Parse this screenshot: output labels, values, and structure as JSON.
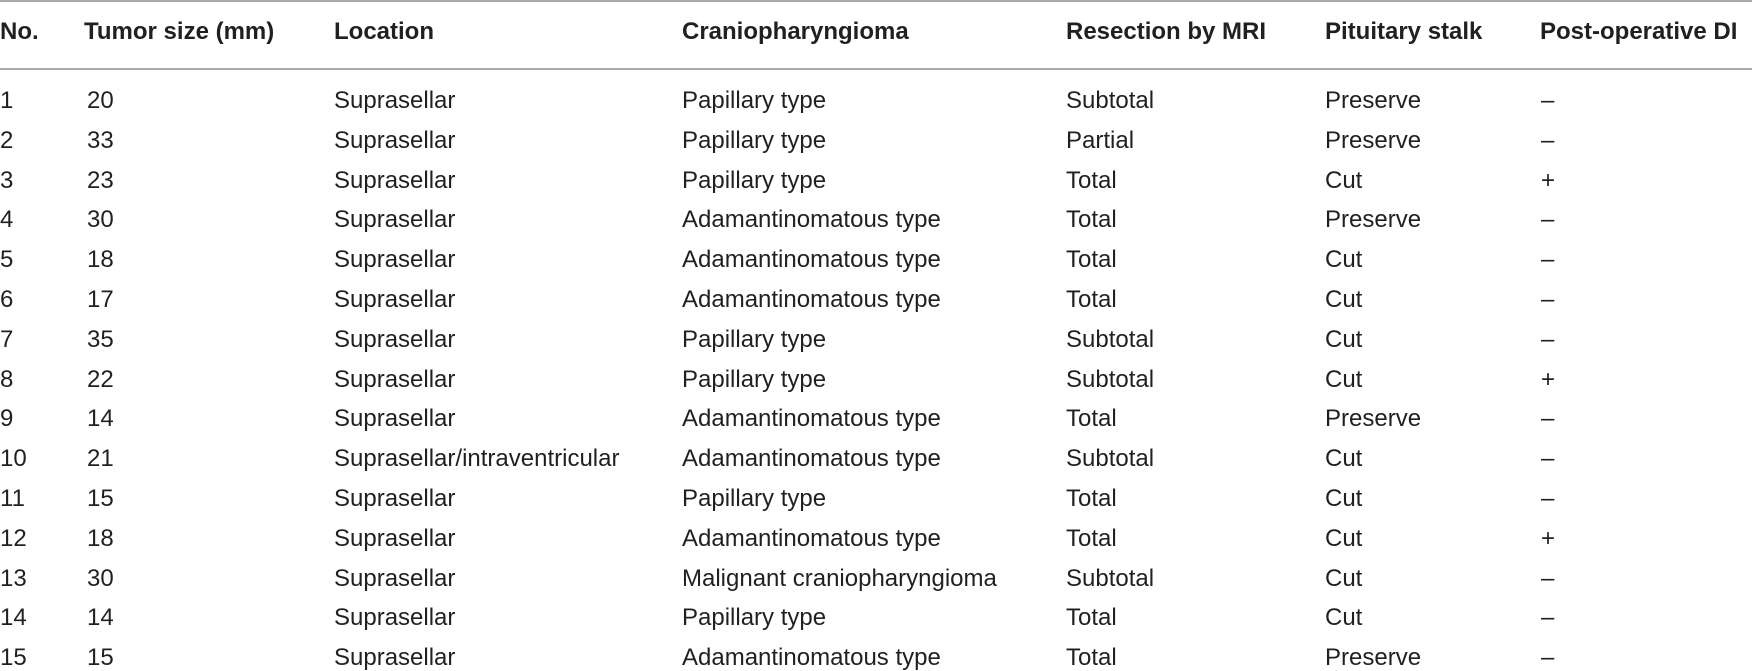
{
  "table": {
    "headers": [
      "No.",
      "Tumor size (mm)",
      "Location",
      "Craniopharyngioma",
      "Resection by MRI",
      "Pituitary stalk",
      "Post-operative DI"
    ],
    "rows": [
      [
        "1",
        "20",
        "Suprasellar",
        "Papillary type",
        "Subtotal",
        "Preserve",
        "–"
      ],
      [
        "2",
        "33",
        "Suprasellar",
        "Papillary type",
        "Partial",
        "Preserve",
        "–"
      ],
      [
        "3",
        "23",
        "Suprasellar",
        "Papillary type",
        "Total",
        "Cut",
        "+"
      ],
      [
        "4",
        "30",
        "Suprasellar",
        "Adamantinomatous type",
        "Total",
        "Preserve",
        "–"
      ],
      [
        "5",
        "18",
        "Suprasellar",
        "Adamantinomatous type",
        "Total",
        "Cut",
        "–"
      ],
      [
        "6",
        "17",
        "Suprasellar",
        "Adamantinomatous type",
        "Total",
        "Cut",
        "–"
      ],
      [
        "7",
        "35",
        "Suprasellar",
        "Papillary type",
        "Subtotal",
        "Cut",
        "–"
      ],
      [
        "8",
        "22",
        "Suprasellar",
        "Papillary type",
        "Subtotal",
        "Cut",
        "+"
      ],
      [
        "9",
        "14",
        "Suprasellar",
        "Adamantinomatous type",
        "Total",
        "Preserve",
        "–"
      ],
      [
        "10",
        "21",
        "Suprasellar/intraventricular",
        "Adamantinomatous type",
        "Subtotal",
        "Cut",
        "–"
      ],
      [
        "11",
        "15",
        "Suprasellar",
        "Papillary type",
        "Total",
        "Cut",
        "–"
      ],
      [
        "12",
        "18",
        "Suprasellar",
        "Adamantinomatous type",
        "Total",
        "Cut",
        "+"
      ],
      [
        "13",
        "30",
        "Suprasellar",
        "Malignant craniopharyngioma",
        "Subtotal",
        "Cut",
        "–"
      ],
      [
        "14",
        "14",
        "Suprasellar",
        "Papillary type",
        "Total",
        "Cut",
        "–"
      ],
      [
        "15",
        "15",
        "Suprasellar",
        "Adamantinomatous type",
        "Total",
        "Preserve",
        "–"
      ]
    ]
  }
}
